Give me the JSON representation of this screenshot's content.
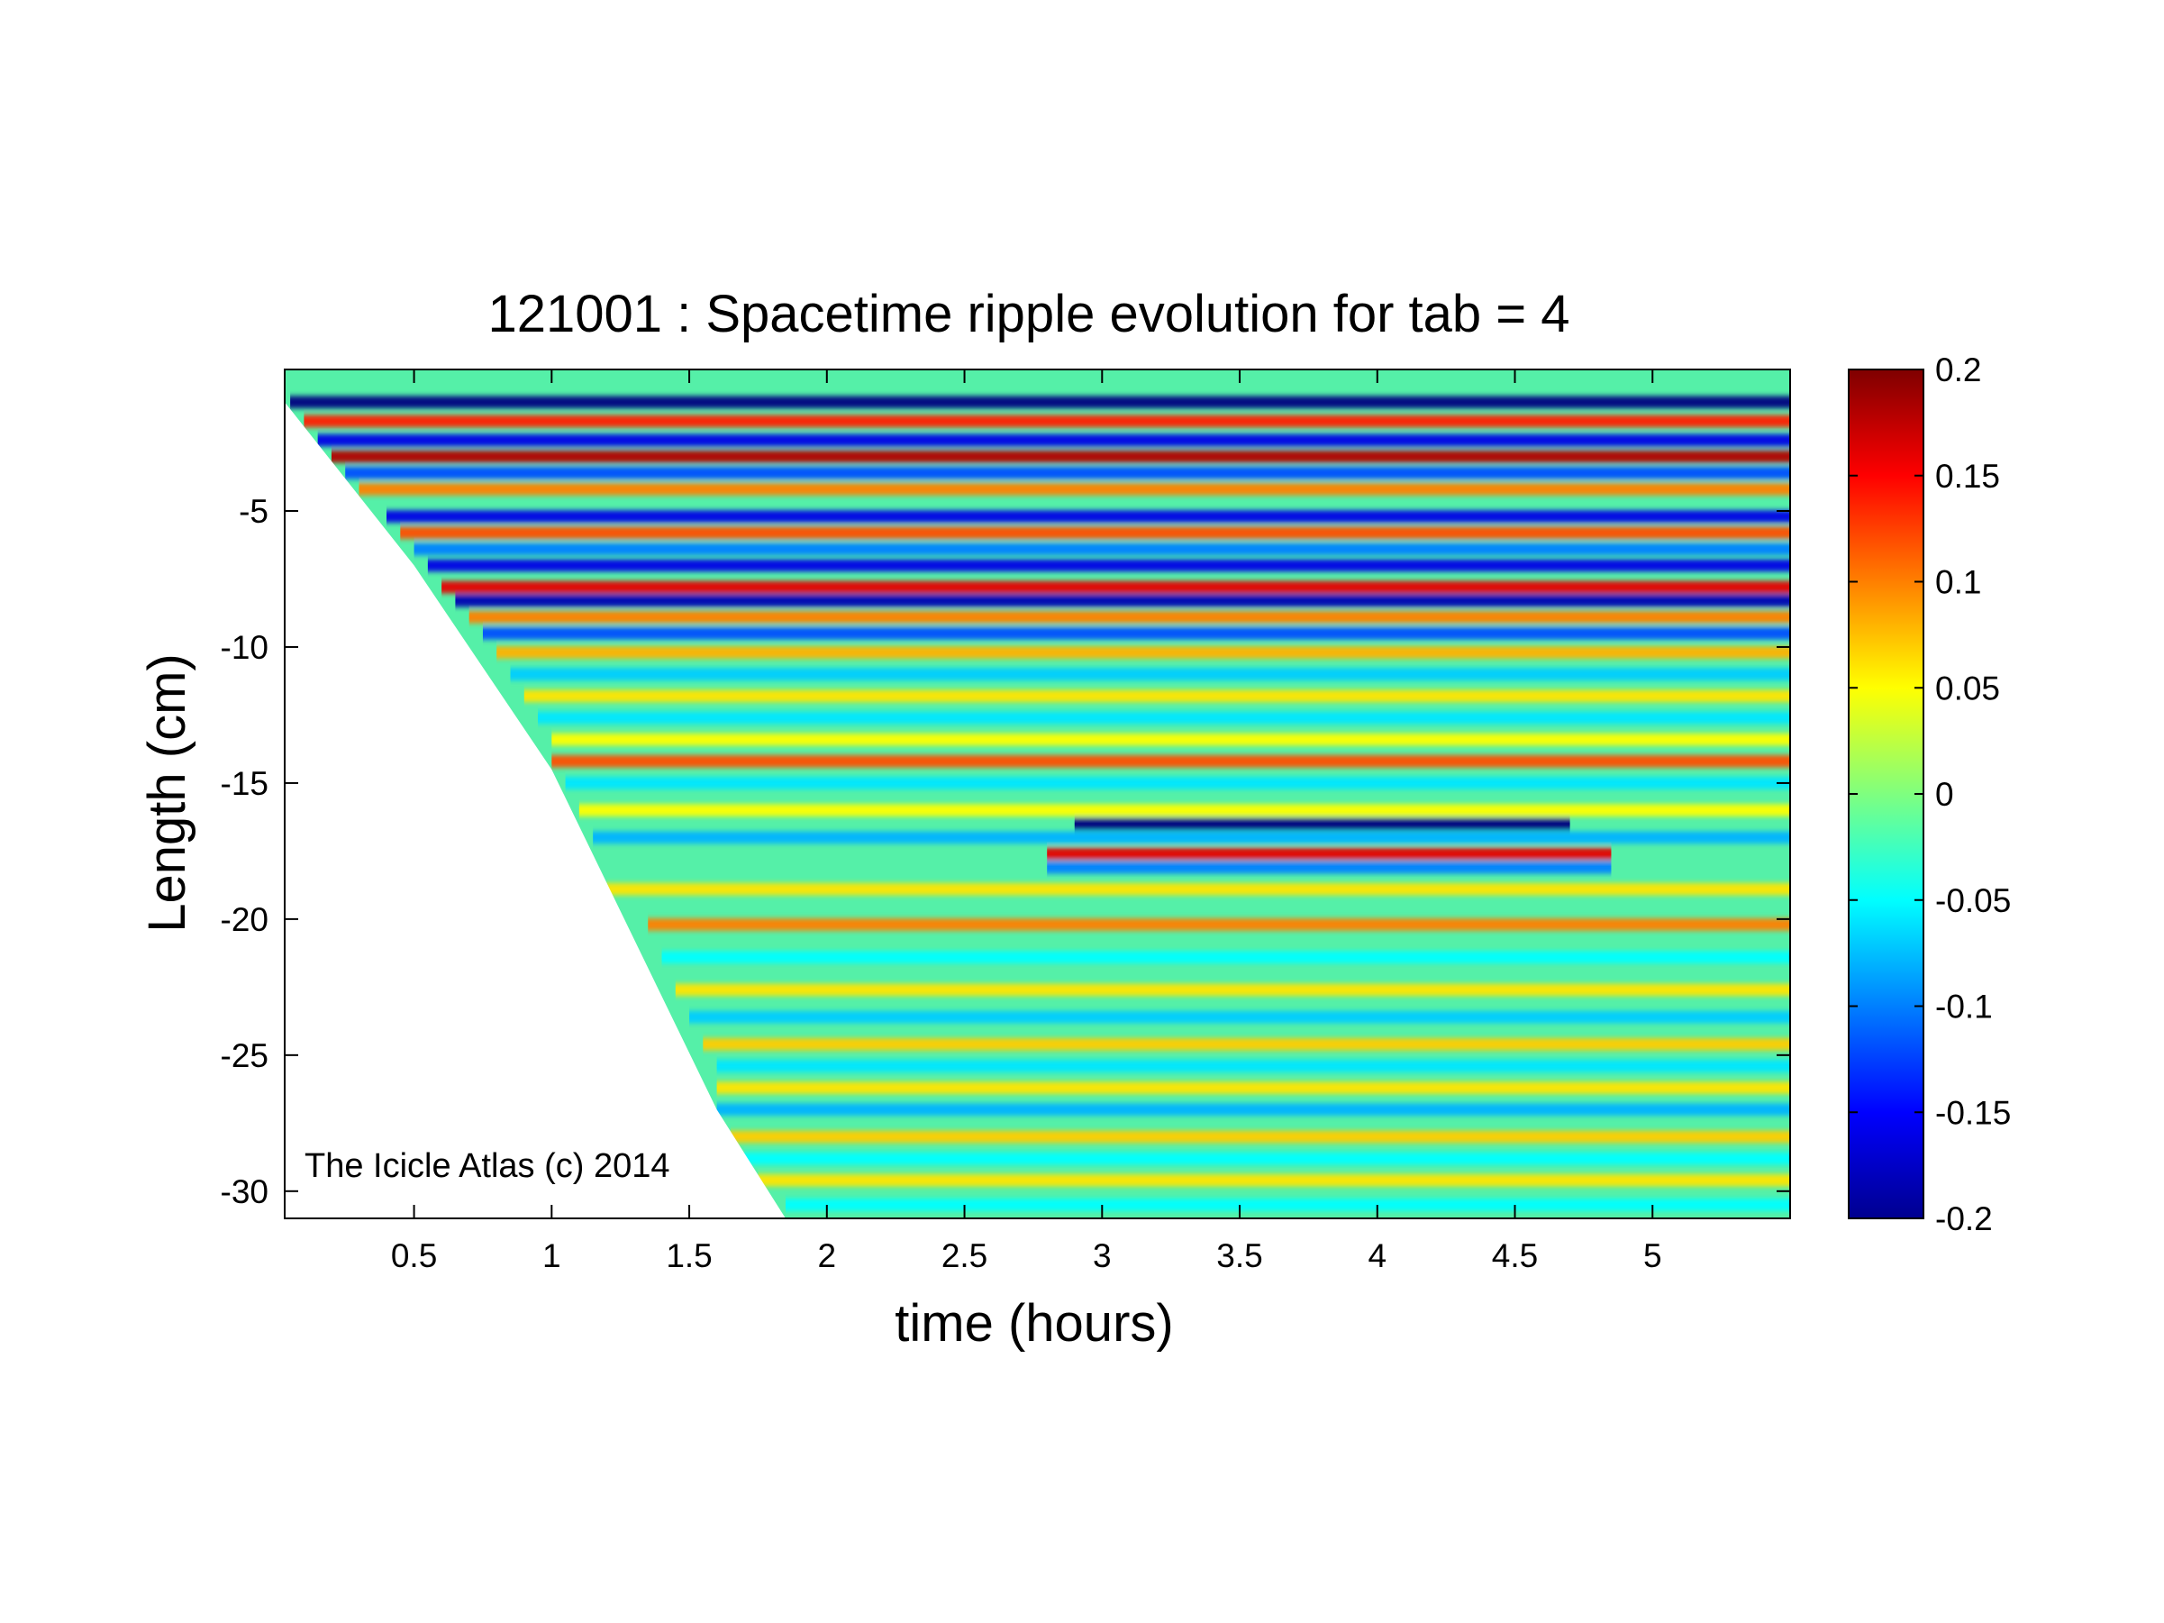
{
  "chart_data": {
    "type": "heatmap",
    "title": "121001 : Spacetime ripple evolution for tab = 4",
    "xlabel": "time (hours)",
    "ylabel": "Length (cm)",
    "xlim": [
      0.03,
      5.5
    ],
    "ylim": [
      -31,
      0.2
    ],
    "x_ticks": [
      0.5,
      1,
      1.5,
      2,
      2.5,
      3,
      3.5,
      4,
      4.5,
      5
    ],
    "x_tick_labels": [
      "0.5",
      "1",
      "1.5",
      "2",
      "2.5",
      "3",
      "3.5",
      "4",
      "4.5",
      "5"
    ],
    "y_ticks": [
      -5,
      -10,
      -15,
      -20,
      -25,
      -30
    ],
    "y_tick_labels": [
      "-5",
      "-10",
      "-15",
      "-20",
      "-25",
      "-30"
    ],
    "colormap": "jet",
    "clim": [
      -0.2,
      0.2
    ],
    "colorbar": {
      "ticks": [
        0.2,
        0.15,
        0.1,
        0.05,
        0,
        -0.05,
        -0.1,
        -0.15,
        -0.2
      ],
      "tick_labels": [
        "0.2",
        "0.15",
        "0.1",
        "0.05",
        "0",
        "-0.05",
        "-0.1",
        "-0.15",
        "-0.2"
      ],
      "location": "right"
    },
    "bands": [
      {
        "y": -1.0,
        "x": [
          0.05,
          5.5
        ],
        "value": -0.2
      },
      {
        "y": -1.7,
        "x": [
          0.1,
          5.5
        ],
        "value": 0.14
      },
      {
        "y": -2.4,
        "x": [
          0.15,
          5.5
        ],
        "value": -0.16
      },
      {
        "y": -3.0,
        "x": [
          0.2,
          5.5
        ],
        "value": 0.18
      },
      {
        "y": -3.6,
        "x": [
          0.25,
          5.5
        ],
        "value": -0.12
      },
      {
        "y": -4.2,
        "x": [
          0.3,
          5.5
        ],
        "value": 0.1
      },
      {
        "y": -5.2,
        "x": [
          0.4,
          5.5
        ],
        "value": -0.16
      },
      {
        "y": -5.8,
        "x": [
          0.45,
          5.5
        ],
        "value": 0.12
      },
      {
        "y": -6.4,
        "x": [
          0.5,
          5.5
        ],
        "value": -0.1
      },
      {
        "y": -7.0,
        "x": [
          0.55,
          5.5
        ],
        "value": -0.16
      },
      {
        "y": -7.8,
        "x": [
          0.6,
          5.5
        ],
        "value": 0.16
      },
      {
        "y": -8.3,
        "x": [
          0.65,
          5.5
        ],
        "value": -0.18
      },
      {
        "y": -8.9,
        "x": [
          0.7,
          5.5
        ],
        "value": 0.1
      },
      {
        "y": -9.5,
        "x": [
          0.75,
          5.5
        ],
        "value": -0.12
      },
      {
        "y": -10.2,
        "x": [
          0.8,
          5.5
        ],
        "value": 0.08
      },
      {
        "y": -11.0,
        "x": [
          0.85,
          5.5
        ],
        "value": -0.07
      },
      {
        "y": -11.8,
        "x": [
          0.9,
          5.5
        ],
        "value": 0.06
      },
      {
        "y": -12.6,
        "x": [
          0.95,
          5.5
        ],
        "value": -0.06
      },
      {
        "y": -13.4,
        "x": [
          1.0,
          5.5
        ],
        "value": 0.05
      },
      {
        "y": -14.2,
        "x": [
          1.0,
          5.5
        ],
        "value": 0.12
      },
      {
        "y": -15.0,
        "x": [
          1.05,
          5.5
        ],
        "value": -0.06
      },
      {
        "y": -16.0,
        "x": [
          1.1,
          5.5
        ],
        "value": 0.05
      },
      {
        "y": -16.5,
        "x": [
          2.9,
          4.7
        ],
        "value": -0.2
      },
      {
        "y": -17.0,
        "x": [
          1.15,
          5.5
        ],
        "value": -0.08
      },
      {
        "y": -17.6,
        "x": [
          2.8,
          4.85
        ],
        "value": 0.16
      },
      {
        "y": -18.1,
        "x": [
          2.8,
          4.85
        ],
        "value": -0.1
      },
      {
        "y": -18.9,
        "x": [
          1.2,
          5.5
        ],
        "value": 0.06
      },
      {
        "y": -20.2,
        "x": [
          1.35,
          5.5
        ],
        "value": 0.1
      },
      {
        "y": -21.4,
        "x": [
          1.4,
          5.5
        ],
        "value": -0.05
      },
      {
        "y": -22.6,
        "x": [
          1.45,
          5.5
        ],
        "value": 0.06
      },
      {
        "y": -23.6,
        "x": [
          1.5,
          5.5
        ],
        "value": -0.07
      },
      {
        "y": -24.6,
        "x": [
          1.55,
          5.5
        ],
        "value": 0.07
      },
      {
        "y": -25.4,
        "x": [
          1.6,
          5.5
        ],
        "value": -0.06
      },
      {
        "y": -26.2,
        "x": [
          1.6,
          5.5
        ],
        "value": 0.06
      },
      {
        "y": -27.0,
        "x": [
          1.6,
          5.5
        ],
        "value": -0.08
      },
      {
        "y": -28.0,
        "x": [
          1.65,
          5.5
        ],
        "value": 0.07
      },
      {
        "y": -28.8,
        "x": [
          1.7,
          5.5
        ],
        "value": -0.05
      },
      {
        "y": -29.6,
        "x": [
          1.75,
          5.5
        ],
        "value": 0.06
      },
      {
        "y": -30.5,
        "x": [
          1.85,
          5.5
        ],
        "value": -0.05
      }
    ],
    "start_boundary": [
      {
        "x": 0.03,
        "y": -1.0
      },
      {
        "x": 0.5,
        "y": -7.0
      },
      {
        "x": 1.0,
        "y": -14.5
      },
      {
        "x": 1.6,
        "y": -27.0
      },
      {
        "x": 1.85,
        "y": -31.0
      }
    ]
  },
  "watermark": "The Icicle Atlas (c) 2014"
}
